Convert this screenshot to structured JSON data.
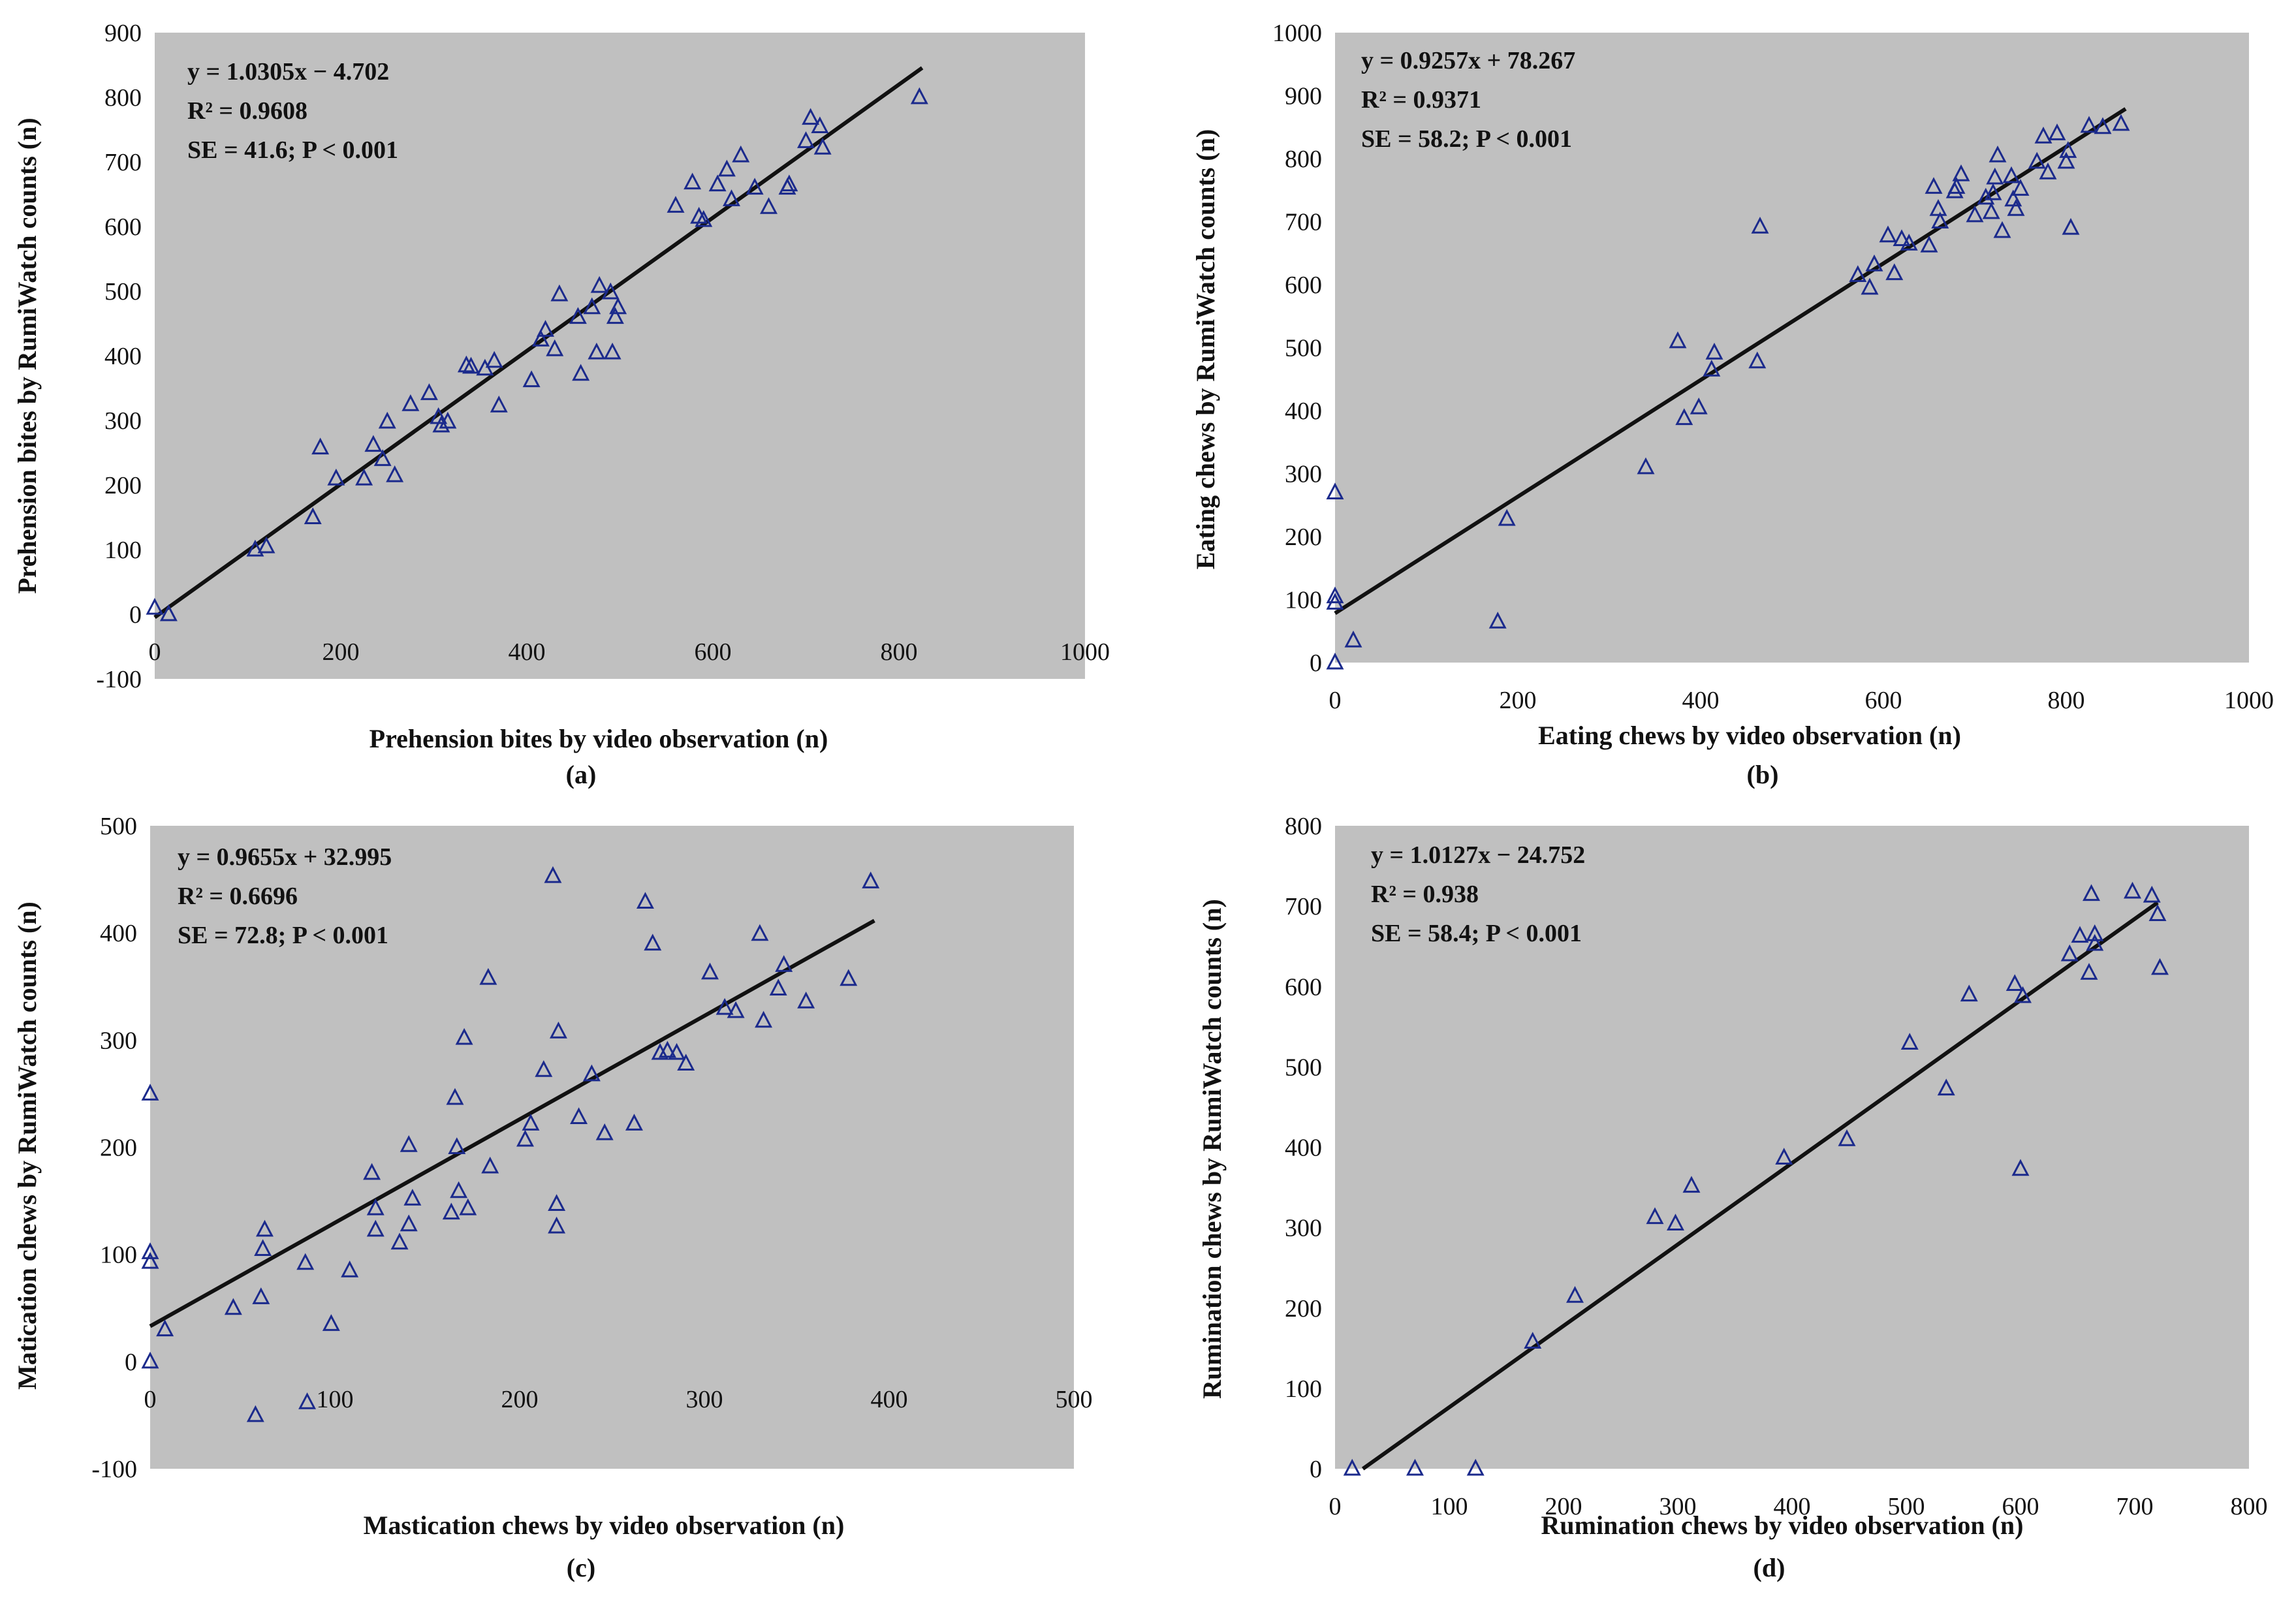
{
  "figure_title": "",
  "chart_data": [
    {
      "type": "scatter",
      "panel_label": "(a)",
      "title": "",
      "xlabel": "Prehension bites by video observation (n)",
      "ylabel": "Prehension bites by  RumiWatch counts (n)",
      "xlim": [
        0,
        1000
      ],
      "ylim": [
        -100,
        900
      ],
      "x_ticks": [
        0,
        200,
        400,
        600,
        800,
        1000
      ],
      "y_ticks": [
        -100,
        0,
        100,
        200,
        300,
        400,
        500,
        600,
        700,
        800,
        900
      ],
      "grid": false,
      "legend": "none",
      "marker": "open-triangle",
      "marker_color": "#1b2a8c",
      "background_color": "#c0c0c0",
      "regression": {
        "slope": 1.0305,
        "intercept": -4.702,
        "x_range": [
          0,
          825
        ]
      },
      "annotations": [
        "y = 1.0305x − 4.702",
        "R² = 0.9608",
        "SE = 41.6; P < 0.001"
      ],
      "series": [
        {
          "name": "observations",
          "x": [
            0,
            15,
            108,
            120,
            170,
            178,
            195,
            225,
            235,
            245,
            250,
            258,
            275,
            295,
            305,
            308,
            315,
            335,
            340,
            355,
            365,
            370,
            405,
            415,
            420,
            430,
            435,
            455,
            458,
            470,
            475,
            478,
            490,
            492,
            495,
            498,
            560,
            578,
            585,
            590,
            605,
            615,
            620,
            630,
            645,
            660,
            680,
            682,
            700,
            705,
            715,
            718,
            822
          ],
          "y": [
            10,
            0,
            100,
            105,
            150,
            258,
            210,
            210,
            262,
            240,
            298,
            215,
            325,
            342,
            305,
            292,
            298,
            385,
            383,
            380,
            392,
            323,
            362,
            425,
            440,
            410,
            495,
            460,
            372,
            475,
            405,
            508,
            498,
            405,
            460,
            475,
            632,
            668,
            615,
            610,
            665,
            688,
            642,
            710,
            660,
            630,
            660,
            665,
            732,
            768,
            755,
            722,
            800
          ]
        }
      ]
    },
    {
      "type": "scatter",
      "panel_label": "(b)",
      "title": "",
      "xlabel": "Eating chews by video observation (n)",
      "ylabel": "Eating chews by  RumiWatch counts (n)",
      "xlim": [
        0,
        1000
      ],
      "ylim": [
        0,
        1000
      ],
      "x_ticks": [
        0,
        200,
        400,
        600,
        800,
        1000
      ],
      "y_ticks": [
        0,
        100,
        200,
        300,
        400,
        500,
        600,
        700,
        800,
        900,
        1000
      ],
      "grid": false,
      "legend": "none",
      "marker": "open-triangle",
      "marker_color": "#1b2a8c",
      "background_color": "#c0c0c0",
      "regression": {
        "slope": 0.9257,
        "intercept": 78.267,
        "x_range": [
          0,
          865
        ]
      },
      "annotations": [
        "y = 0.9257x + 78.267",
        "R² = 0.9371",
        "SE = 58.2; P < 0.001"
      ],
      "series": [
        {
          "name": "observations",
          "x": [
            0,
            0,
            0,
            0,
            20,
            178,
            188,
            340,
            375,
            382,
            398,
            412,
            415,
            462,
            465,
            572,
            585,
            590,
            605,
            612,
            620,
            628,
            650,
            655,
            660,
            662,
            678,
            680,
            685,
            700,
            712,
            718,
            720,
            722,
            725,
            730,
            740,
            742,
            745,
            750,
            768,
            775,
            780,
            790,
            800,
            802,
            805,
            825,
            840,
            860
          ],
          "y": [
            270,
            105,
            95,
            0,
            35,
            65,
            228,
            310,
            510,
            388,
            405,
            465,
            492,
            478,
            692,
            615,
            595,
            632,
            678,
            618,
            672,
            665,
            662,
            755,
            720,
            700,
            748,
            755,
            775,
            710,
            738,
            715,
            745,
            770,
            805,
            685,
            772,
            735,
            720,
            752,
            795,
            835,
            778,
            840,
            795,
            812,
            690,
            852,
            850,
            855
          ]
        }
      ]
    },
    {
      "type": "scatter",
      "panel_label": "(c)",
      "title": "",
      "xlabel": "Mastication chews by video observation (n)",
      "ylabel": "Matication chews by  RumiWatch counts (n)",
      "xlim": [
        0,
        500
      ],
      "ylim": [
        -100,
        500
      ],
      "x_ticks": [
        0,
        100,
        200,
        300,
        400,
        500
      ],
      "y_ticks": [
        -100,
        0,
        100,
        200,
        300,
        400,
        500
      ],
      "grid": false,
      "legend": "none",
      "marker": "open-triangle",
      "marker_color": "#1b2a8c",
      "background_color": "#c0c0c0",
      "regression": {
        "slope": 0.9655,
        "intercept": 32.995,
        "x_range": [
          0,
          392
        ]
      },
      "annotations": [
        "y = 0.9655x + 32.995",
        "R² = 0.6696",
        "SE = 72.8; P < 0.001"
      ],
      "series": [
        {
          "name": "observations",
          "x": [
            0,
            0,
            0,
            0,
            8,
            45,
            57,
            60,
            61,
            62,
            84,
            85,
            98,
            108,
            120,
            122,
            122,
            135,
            140,
            140,
            142,
            163,
            165,
            166,
            167,
            170,
            172,
            183,
            184,
            203,
            206,
            213,
            218,
            220,
            220,
            221,
            232,
            239,
            246,
            262,
            268,
            272,
            276,
            280,
            285,
            290,
            303,
            311,
            317,
            330,
            332,
            340,
            343,
            355,
            378,
            390
          ],
          "y": [
            250,
            102,
            93,
            0,
            30,
            50,
            -50,
            60,
            105,
            123,
            92,
            -38,
            35,
            85,
            176,
            143,
            123,
            111,
            202,
            128,
            152,
            139,
            246,
            200,
            159,
            302,
            143,
            358,
            182,
            207,
            222,
            272,
            453,
            147,
            126,
            308,
            228,
            268,
            213,
            222,
            429,
            390,
            288,
            290,
            288,
            278,
            363,
            330,
            327,
            399,
            318,
            348,
            370,
            336,
            357,
            448
          ]
        }
      ]
    },
    {
      "type": "scatter",
      "panel_label": "(d)",
      "title": "",
      "xlabel": "Rumination chews by video observation (n)",
      "ylabel": "Rumination chews by  RumiWatch counts (n)",
      "xlim": [
        0,
        800
      ],
      "ylim": [
        0,
        800
      ],
      "x_ticks": [
        0,
        100,
        200,
        300,
        400,
        500,
        600,
        700,
        800
      ],
      "y_ticks": [
        0,
        100,
        200,
        300,
        400,
        500,
        600,
        700,
        800
      ],
      "grid": false,
      "legend": "none",
      "marker": "open-triangle",
      "marker_color": "#1b2a8c",
      "background_color": "#c0c0c0",
      "regression": {
        "slope": 1.0127,
        "intercept": -24.752,
        "x_range": [
          24.4,
          720
        ]
      },
      "annotations": [
        "y = 1.0127x − 24.752",
        "R² = 0.938",
        "SE = 58.4; P < 0.001"
      ],
      "series": [
        {
          "name": "observations",
          "x": [
            15,
            70,
            123,
            173,
            210,
            280,
            298,
            312,
            393,
            448,
            503,
            535,
            555,
            595,
            600,
            602,
            643,
            652,
            660,
            662,
            665,
            665,
            698,
            715,
            720,
            722
          ],
          "y": [
            0,
            0,
            0,
            158,
            215,
            313,
            305,
            352,
            387,
            410,
            530,
            473,
            590,
            603,
            373,
            588,
            640,
            663,
            617,
            715,
            653,
            665,
            718,
            713,
            690,
            623
          ]
        }
      ]
    }
  ]
}
